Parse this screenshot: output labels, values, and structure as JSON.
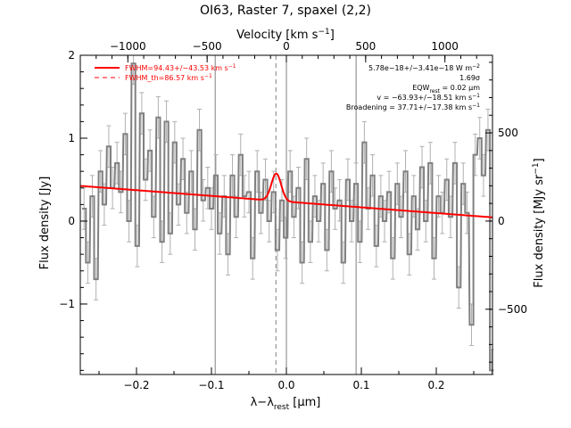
{
  "chart_data": {
    "type": "line",
    "title": "OI63, Raster 7, spaxel (2,2)",
    "xlabel": "λ−λ",
    "xlabel_sub": "rest",
    "xlabel_unit": " [μm]",
    "ylabel": "Flux density [Jy]",
    "top_axis_label": "Velocity [km s",
    "top_axis_sup": "−1",
    "top_axis_end": "]",
    "right_axis_label": "Flux density [MJy sr",
    "right_axis_sup": "−1",
    "right_axis_end": "]",
    "xlim": [
      -0.275,
      0.275
    ],
    "ylim": [
      -1.85,
      2.0
    ],
    "velocity_lim": [
      -1300,
      1300
    ],
    "right_lim": [
      -870,
      940
    ],
    "x_ticks": [
      -0.2,
      -0.1,
      0.0,
      0.1,
      0.2
    ],
    "x_tick_labels": [
      "−0.2",
      "−0.1",
      "0.0",
      "0.1",
      "0.2"
    ],
    "y_ticks": [
      -1,
      0,
      1,
      2
    ],
    "y_tick_labels": [
      "−1",
      "0",
      "1",
      "2"
    ],
    "top_ticks": [
      -1000,
      -500,
      0,
      500,
      1000
    ],
    "top_tick_labels": [
      "−1000",
      "−500",
      "0",
      "500",
      "1000"
    ],
    "right_ticks": [
      -500,
      0,
      500
    ],
    "right_tick_labels": [
      "−500",
      "0",
      "500"
    ],
    "vertical_lines": [
      -0.095,
      0.0,
      0.093
    ],
    "dashed_line": -0.014,
    "legend": {
      "position": "top-left",
      "entries": [
        {
          "label": "FWHM=94.43+/−43.53 km s",
          "sup": "−1",
          "style": "solid"
        },
        {
          "label": "FWHM_th=86.57 km s",
          "sup": "−1",
          "style": "dashed"
        }
      ]
    },
    "annotations": {
      "line1": "5.78e−18+/−3.41e−18 W m",
      "line1_sup": "−2",
      "line2": "1.69σ",
      "line3a": "EQW",
      "line3_sub": "rest",
      "line3b": " = 0.02 μm",
      "line4": "v = −63.93+/−18.51 km s",
      "line4_sup": "−1",
      "line5": "Broadening = 37.71+/−17.38 km s",
      "line5_sup": "−1"
    },
    "series": [
      {
        "name": "data",
        "x": [
          -0.27,
          -0.265,
          -0.259,
          -0.254,
          -0.248,
          -0.243,
          -0.237,
          -0.232,
          -0.226,
          -0.221,
          -0.215,
          -0.21,
          -0.204,
          -0.199,
          -0.193,
          -0.188,
          -0.182,
          -0.177,
          -0.171,
          -0.166,
          -0.16,
          -0.155,
          -0.149,
          -0.144,
          -0.138,
          -0.133,
          -0.127,
          -0.122,
          -0.116,
          -0.111,
          -0.105,
          -0.1,
          -0.094,
          -0.089,
          -0.083,
          -0.078,
          -0.072,
          -0.067,
          -0.061,
          -0.056,
          -0.05,
          -0.045,
          -0.039,
          -0.034,
          -0.028,
          -0.023,
          -0.017,
          -0.012,
          -0.006,
          -0.001,
          0.005,
          0.01,
          0.016,
          0.021,
          0.027,
          0.032,
          0.038,
          0.043,
          0.049,
          0.054,
          0.06,
          0.065,
          0.071,
          0.076,
          0.082,
          0.087,
          0.093,
          0.098,
          0.104,
          0.109,
          0.115,
          0.12,
          0.126,
          0.131,
          0.137,
          0.142,
          0.148,
          0.153,
          0.159,
          0.164,
          0.17,
          0.175,
          0.181,
          0.186,
          0.192,
          0.197,
          0.203,
          0.208,
          0.214,
          0.219,
          0.225,
          0.23,
          0.236,
          0.241,
          0.247,
          0.252,
          0.258,
          0.263,
          0.269,
          0.274
        ],
        "y": [
          0.15,
          -0.5,
          0.3,
          -0.7,
          0.6,
          0.2,
          0.9,
          0.4,
          0.7,
          0.35,
          1.05,
          0.0,
          1.9,
          -0.3,
          1.3,
          0.5,
          0.85,
          0.05,
          1.25,
          -0.25,
          1.2,
          -0.15,
          0.95,
          0.2,
          0.75,
          0.1,
          0.6,
          -0.1,
          1.1,
          0.25,
          0.4,
          0.15,
          0.55,
          -0.15,
          0.3,
          -0.4,
          0.55,
          0.05,
          0.8,
          0.3,
          0.35,
          -0.45,
          0.6,
          0.1,
          0.5,
          0.0,
          0.35,
          -0.35,
          0.25,
          -0.2,
          0.6,
          0.05,
          0.4,
          -0.5,
          0.75,
          -0.25,
          0.3,
          0.0,
          0.45,
          -0.35,
          0.6,
          0.15,
          0.25,
          -0.5,
          0.5,
          0.0,
          0.45,
          -0.25,
          0.95,
          0.15,
          0.55,
          -0.3,
          0.3,
          0.0,
          0.35,
          -0.45,
          0.45,
          0.05,
          0.6,
          -0.4,
          0.3,
          -0.1,
          0.65,
          0.0,
          0.7,
          -0.45,
          0.3,
          0.1,
          0.5,
          0.05,
          0.7,
          -0.8,
          0.45,
          0.1,
          -1.25,
          0.8,
          1.0,
          0.55,
          1.1,
          -1.8
        ],
        "errors": [
          0.25,
          0.25,
          0.25,
          0.25,
          0.25,
          0.25,
          0.25,
          0.25,
          0.25,
          0.25,
          0.25,
          0.25,
          0.25,
          0.25,
          0.25,
          0.25,
          0.25,
          0.25,
          0.25,
          0.25,
          0.25,
          0.25,
          0.25,
          0.25,
          0.25,
          0.25,
          0.25,
          0.25,
          0.25,
          0.25,
          0.25,
          0.25,
          0.25,
          0.25,
          0.25,
          0.25,
          0.25,
          0.25,
          0.25,
          0.25,
          0.25,
          0.25,
          0.25,
          0.25,
          0.25,
          0.25,
          0.25,
          0.25,
          0.25,
          0.25,
          0.25,
          0.25,
          0.25,
          0.25,
          0.25,
          0.25,
          0.25,
          0.25,
          0.25,
          0.25,
          0.25,
          0.25,
          0.25,
          0.25,
          0.25,
          0.25,
          0.25,
          0.25,
          0.25,
          0.25,
          0.25,
          0.25,
          0.25,
          0.25,
          0.25,
          0.25,
          0.25,
          0.25,
          0.25,
          0.25,
          0.25,
          0.25,
          0.25,
          0.25,
          0.25,
          0.25,
          0.25,
          0.25,
          0.25,
          0.25,
          0.25,
          0.25,
          0.25,
          0.25,
          0.25,
          0.25,
          0.25,
          0.25,
          0.25,
          0.25
        ]
      },
      {
        "name": "fit",
        "continuum_intercept": 0.235,
        "continuum_slope": -0.69,
        "gaussian": {
          "center": -0.0135,
          "amplitude": 0.33,
          "sigma": 0.0065
        }
      }
    ],
    "colors": {
      "data": "#808080",
      "errorbar": "#b0b0b0",
      "fit": "#ff0000",
      "axis": "#000000",
      "ref_line": "#808080"
    }
  }
}
